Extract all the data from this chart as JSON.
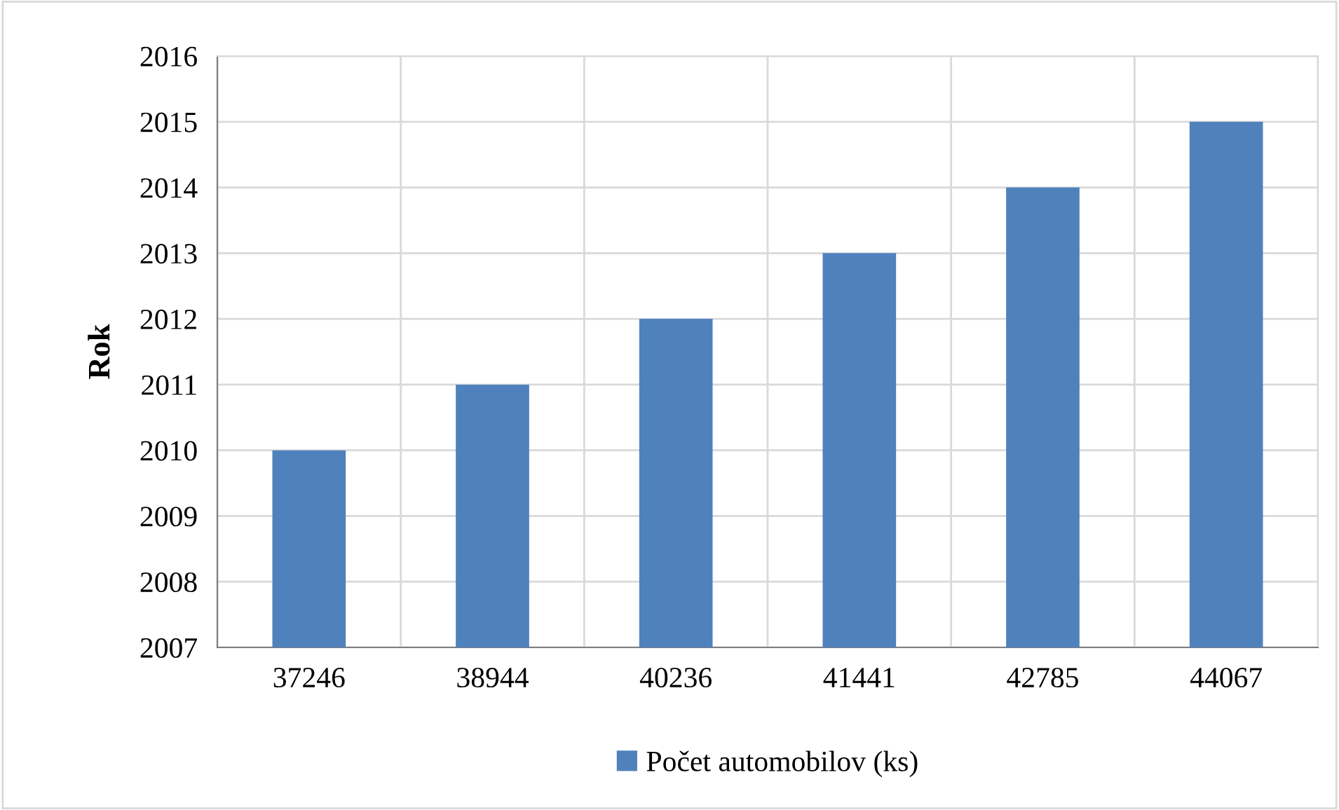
{
  "chart_data": {
    "type": "bar",
    "ylabel": "Rok",
    "categories": [
      "37246",
      "38944",
      "40236",
      "41441",
      "42785",
      "44067"
    ],
    "series": [
      {
        "name": "Počet automobilov (ks)",
        "color": "#4f81bd",
        "values": [
          2010,
          2011,
          2012,
          2013,
          2014,
          2015
        ]
      }
    ],
    "ylim": [
      2007,
      2016
    ],
    "yticks": [
      2007,
      2008,
      2009,
      2010,
      2011,
      2012,
      2013,
      2014,
      2015,
      2016
    ],
    "grid": true,
    "legend": "bottom"
  }
}
